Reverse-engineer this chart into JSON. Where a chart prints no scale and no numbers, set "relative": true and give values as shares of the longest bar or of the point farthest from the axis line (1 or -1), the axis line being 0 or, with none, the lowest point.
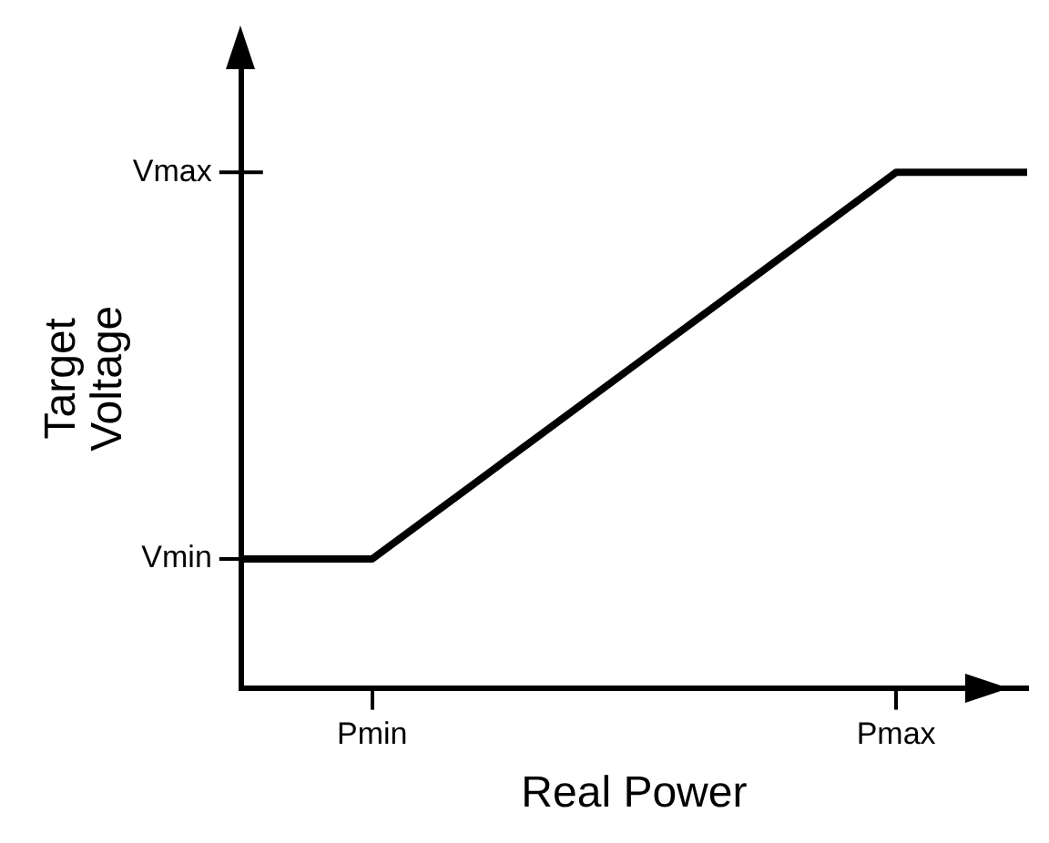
{
  "chart_data": {
    "type": "line",
    "xlabel": "Real Power",
    "ylabel": "Target Voltage",
    "relative": true,
    "categories": [
      null,
      "Pmin",
      null,
      null,
      null,
      "Pmax",
      null
    ],
    "series": [
      {
        "color": "#000000",
        "values": [
          0.25,
          0.25,
          0.4375,
          0.625,
          0.8125,
          1,
          1
        ]
      }
    ],
    "annotations": [
      "Vmin",
      "Vmax"
    ],
    "grid": false,
    "legend": false,
    "marker": "none",
    "line_style": "solid"
  }
}
